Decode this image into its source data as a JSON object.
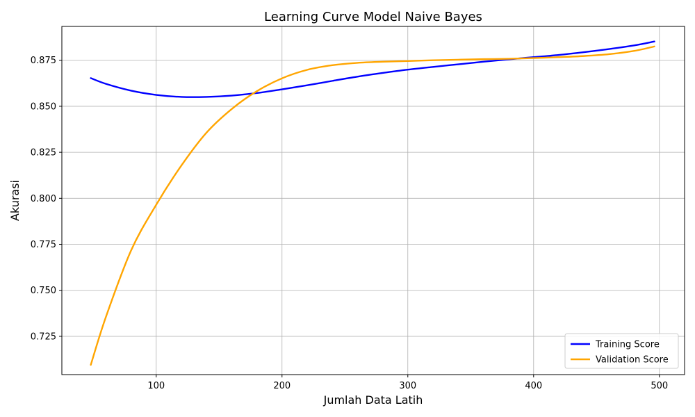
{
  "chart_data": {
    "type": "line",
    "title": "Learning Curve Model Naive Bayes",
    "xlabel": "Jumlah Data Latih",
    "ylabel": "Akurasi",
    "xlim": [
      25,
      520
    ],
    "ylim": [
      0.7042,
      0.8934
    ],
    "xticks": [
      100,
      200,
      300,
      400,
      500
    ],
    "yticks": [
      0.725,
      0.75,
      0.775,
      0.8,
      0.825,
      0.85,
      0.875
    ],
    "xtick_labels": [
      "100",
      "200",
      "300",
      "400",
      "500"
    ],
    "ytick_labels": [
      "0.725",
      "0.750",
      "0.775",
      "0.800",
      "0.825",
      "0.850",
      "0.875"
    ],
    "grid": true,
    "legend_position": "lower-right",
    "series": [
      {
        "name": "Training Score",
        "color": "#0000ff",
        "x": [
          48,
          60,
          80,
          100,
          120,
          140,
          160,
          180,
          200,
          220,
          240,
          260,
          280,
          300,
          320,
          340,
          360,
          380,
          400,
          420,
          440,
          460,
          480,
          496
        ],
        "y": [
          0.8653,
          0.8622,
          0.8585,
          0.8562,
          0.8551,
          0.8551,
          0.8558,
          0.8572,
          0.8592,
          0.8614,
          0.8638,
          0.8661,
          0.8681,
          0.8699,
          0.8714,
          0.8728,
          0.8742,
          0.8755,
          0.8767,
          0.8779,
          0.8794,
          0.8811,
          0.8831,
          0.8852
        ]
      },
      {
        "name": "Validation Score",
        "color": "#ffa500",
        "x": [
          48,
          60,
          80,
          100,
          120,
          140,
          160,
          180,
          200,
          220,
          240,
          260,
          280,
          300,
          320,
          340,
          360,
          380,
          400,
          420,
          440,
          460,
          480,
          496
        ],
        "y": [
          0.7095,
          0.7355,
          0.7716,
          0.7965,
          0.8178,
          0.8357,
          0.8485,
          0.8582,
          0.8652,
          0.8698,
          0.8723,
          0.8736,
          0.8742,
          0.8746,
          0.875,
          0.8753,
          0.8756,
          0.8758,
          0.8762,
          0.8767,
          0.8773,
          0.8783,
          0.8801,
          0.8825
        ]
      }
    ]
  }
}
